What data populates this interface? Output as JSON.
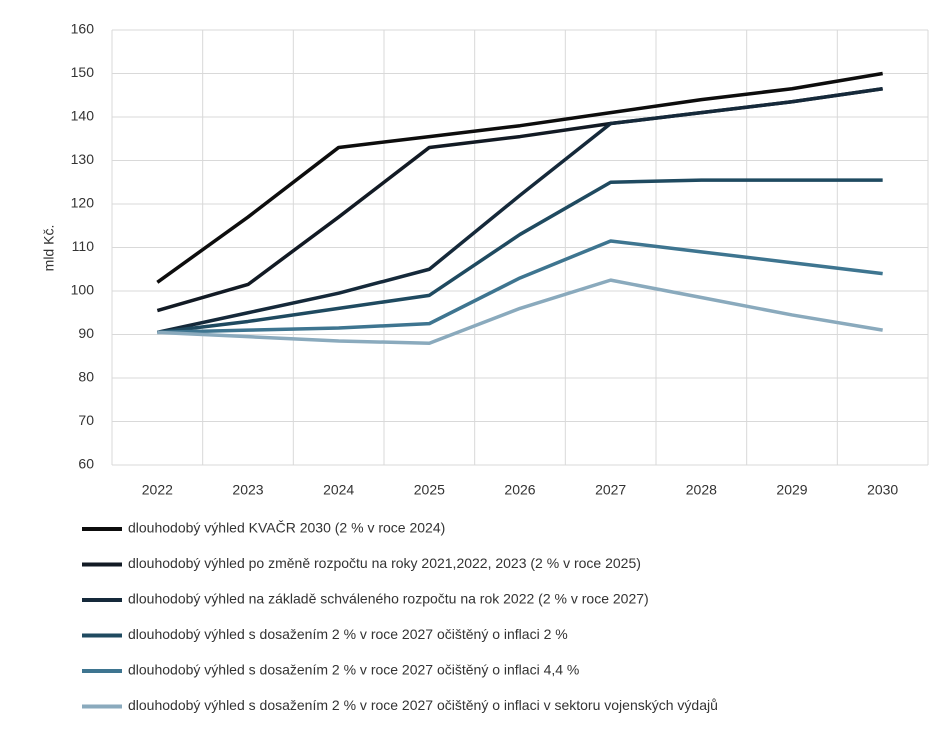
{
  "chart_data": {
    "type": "line",
    "ylabel": "mld Kč.",
    "categories": [
      "2022",
      "2023",
      "2024",
      "2025",
      "2026",
      "2027",
      "2028",
      "2029",
      "2030"
    ],
    "series": [
      {
        "name": "dlouhodobý výhled KVAČR 2030 (2 % v roce 2024)",
        "color": "#0d0d0d",
        "values": [
          102,
          117,
          133,
          135.5,
          138,
          141,
          144,
          146.5,
          150
        ]
      },
      {
        "name": "dlouhodobý výhled po změně rozpočtu na roky 2021,2022, 2023 (2 % v roce 2025)",
        "color": "#121a24",
        "values": [
          95.5,
          101.5,
          117,
          133,
          135.5,
          138.5,
          141,
          143.5,
          146.5
        ]
      },
      {
        "name": "dlouhodobý výhled na základě schváleného rozpočtu na rok 2022 (2 % v roce 2027)",
        "color": "#15293a",
        "values": [
          90.5,
          95,
          99.5,
          105,
          122,
          138.5,
          141,
          143.5,
          146.5
        ]
      },
      {
        "name": "dlouhodobý výhled s dosažením 2 % v roce 2027 očištěný o inflaci 2 %",
        "color": "#1f4a60",
        "values": [
          90.5,
          93,
          96,
          99,
          113,
          125,
          125.5,
          125.5,
          125.5
        ]
      },
      {
        "name": "dlouhodobý výhled s dosažením 2 % v roce 2027 očištěný o inflaci 4,4 %",
        "color": "#3e7590",
        "values": [
          90.5,
          91,
          91.5,
          92.5,
          103,
          111.5,
          109,
          106.5,
          104
        ]
      },
      {
        "name": "dlouhodobý výhled s dosažením 2 % v roce 2027 očištěný o inflaci v sektoru vojenských výdajů",
        "color": "#8aaabd",
        "values": [
          90.5,
          89.5,
          88.5,
          88,
          96,
          102.5,
          98.5,
          94.5,
          91
        ]
      }
    ],
    "ylim": [
      60,
      160
    ],
    "yticks": [
      60,
      70,
      80,
      90,
      100,
      110,
      120,
      130,
      140,
      150,
      160
    ],
    "grid": true
  }
}
